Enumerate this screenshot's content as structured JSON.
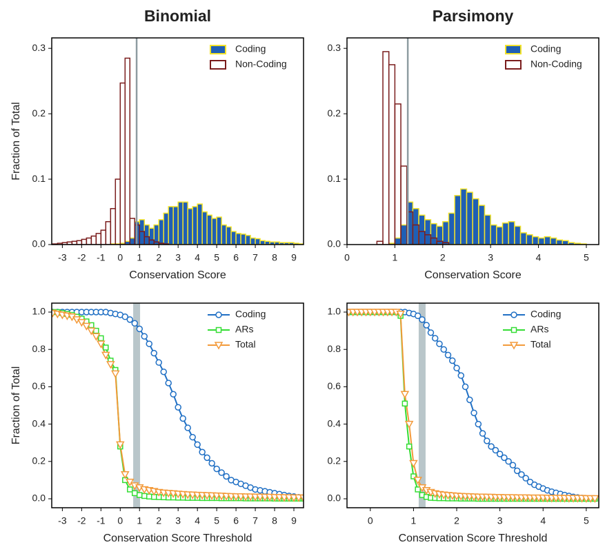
{
  "chart_data": [
    {
      "type": "histogram",
      "title": "Binomial",
      "xlabel": "Conservation Score",
      "ylabel": "Fraction of Total",
      "xlim": [
        -3.55,
        9.5
      ],
      "ylim": [
        0,
        0.316
      ],
      "xticks": [
        -3,
        -2,
        -1,
        0,
        1,
        2,
        3,
        4,
        5,
        6,
        7,
        8,
        9
      ],
      "yticks": [
        {
          "value": 0,
          "label": "0.0"
        },
        0.1,
        0.2,
        0.3
      ],
      "threshold": 0.85,
      "threshold_color": "#8e9ca1",
      "legend": "upper right",
      "bins": [
        -3.5,
        -3.25,
        -3,
        -2.75,
        -2.5,
        -2.25,
        -2,
        -1.75,
        -1.5,
        -1.25,
        -1,
        -0.75,
        -0.5,
        -0.25,
        0,
        0.25,
        0.5,
        0.75,
        1,
        1.25,
        1.5,
        1.75,
        2,
        2.25,
        2.5,
        2.75,
        3,
        3.25,
        3.5,
        3.75,
        4,
        4.25,
        4.5,
        4.75,
        5,
        5.25,
        5.5,
        5.75,
        6,
        6.25,
        6.5,
        6.75,
        7,
        7.25,
        7.5,
        7.75,
        8,
        8.25,
        8.5,
        8.75,
        9,
        9.25,
        9.5
      ],
      "series": [
        {
          "name": "Coding",
          "color": "#1f5fb5",
          "edgecolor": "#f3e32a",
          "filled": true,
          "values": [
            0,
            0,
            0,
            0,
            0,
            0,
            0,
            0,
            0,
            0,
            0,
            0,
            0.001,
            0.001,
            0.002,
            0.005,
            0.01,
            0.035,
            0.038,
            0.03,
            0.025,
            0.03,
            0.038,
            0.048,
            0.058,
            0.058,
            0.065,
            0.065,
            0.055,
            0.058,
            0.062,
            0.05,
            0.045,
            0.04,
            0.042,
            0.03,
            0.027,
            0.02,
            0.017,
            0.016,
            0.014,
            0.01,
            0.009,
            0.006,
            0.005,
            0.004,
            0.004,
            0.003,
            0.003,
            0.003,
            0.002,
            0.001
          ]
        },
        {
          "name": "Non-Coding",
          "color": "#7a1c1c",
          "edgecolor": "#7a1c1c",
          "filled": false,
          "values": [
            0.001,
            0.002,
            0.003,
            0.004,
            0.005,
            0.006,
            0.008,
            0.01,
            0.013,
            0.017,
            0.022,
            0.035,
            0.055,
            0.1,
            0.247,
            0.285,
            0.04,
            0.03,
            0.02,
            0.012,
            0.007,
            0.004,
            0.002,
            0.001,
            0,
            0,
            0,
            0,
            0,
            0,
            0,
            0,
            0,
            0,
            0,
            0,
            0,
            0,
            0,
            0,
            0,
            0,
            0,
            0,
            0,
            0,
            0,
            0,
            0,
            0,
            0,
            0
          ]
        }
      ]
    },
    {
      "type": "histogram",
      "title": "Parsimony",
      "xlabel": "Conservation Score",
      "xlim": [
        0,
        5.26
      ],
      "ylim": [
        0,
        0.316
      ],
      "xticks": [
        0,
        1,
        2,
        3,
        4,
        5
      ],
      "yticks": [
        {
          "value": 0,
          "label": "0.0"
        },
        0.1,
        0.2,
        0.3
      ],
      "threshold": 1.27,
      "threshold_color": "#8e9ca1",
      "legend": "upper right",
      "bins": [
        0,
        0.125,
        0.25,
        0.375,
        0.5,
        0.625,
        0.75,
        0.875,
        1,
        1.125,
        1.25,
        1.375,
        1.5,
        1.625,
        1.75,
        1.875,
        2,
        2.125,
        2.25,
        2.375,
        2.5,
        2.625,
        2.75,
        2.875,
        3,
        3.125,
        3.25,
        3.375,
        3.5,
        3.625,
        3.75,
        3.875,
        4,
        4.125,
        4.25,
        4.375,
        4.5,
        4.625,
        4.75,
        4.875,
        5,
        5.125,
        5.25
      ],
      "series": [
        {
          "name": "Coding",
          "color": "#1f5fb5",
          "edgecolor": "#f3e32a",
          "filled": true,
          "values": [
            0,
            0,
            0,
            0,
            0,
            0,
            0,
            0.002,
            0.01,
            0.03,
            0.065,
            0.055,
            0.045,
            0.038,
            0.032,
            0.028,
            0.035,
            0.048,
            0.075,
            0.085,
            0.08,
            0.07,
            0.06,
            0.045,
            0.03,
            0.027,
            0.033,
            0.035,
            0.028,
            0.018,
            0.015,
            0.012,
            0.01,
            0.012,
            0.01,
            0.007,
            0.006,
            0.003,
            0.002,
            0.001,
            0,
            0
          ]
        },
        {
          "name": "Non-Coding",
          "color": "#7a1c1c",
          "edgecolor": "#7a1c1c",
          "filled": false,
          "values": [
            0,
            0,
            0,
            0,
            0,
            0.005,
            0.295,
            0.275,
            0.215,
            0.12,
            0.05,
            0.03,
            0.02,
            0.015,
            0.01,
            0.005,
            0.003,
            0,
            0,
            0,
            0,
            0,
            0,
            0,
            0,
            0,
            0,
            0,
            0,
            0,
            0,
            0,
            0,
            0,
            0,
            0,
            0,
            0,
            0,
            0,
            0,
            0
          ]
        }
      ]
    },
    {
      "type": "line",
      "xlabel": "Conservation Score Threshold",
      "ylabel": "Fraction of Total",
      "xlim": [
        -3.55,
        9.5
      ],
      "ylim": [
        -0.048,
        1.048
      ],
      "xticks": [
        -3,
        -2,
        -1,
        0,
        1,
        2,
        3,
        4,
        5,
        6,
        7,
        8,
        9
      ],
      "yticks": [
        {
          "value": 0,
          "label": "0.0"
        },
        0.2,
        0.4,
        0.6,
        0.8,
        {
          "value": 1,
          "label": "1.0"
        }
      ],
      "threshold": 0.85,
      "threshold_color": "#b9c6ca",
      "legend": "upper right",
      "x": [
        -3.5,
        -3.25,
        -3,
        -2.75,
        -2.5,
        -2.25,
        -2,
        -1.75,
        -1.5,
        -1.25,
        -1,
        -0.75,
        -0.5,
        -0.25,
        0,
        0.25,
        0.5,
        0.75,
        1,
        1.25,
        1.5,
        1.75,
        2,
        2.25,
        2.5,
        2.75,
        3,
        3.25,
        3.5,
        3.75,
        4,
        4.25,
        4.5,
        4.75,
        5,
        5.25,
        5.5,
        5.75,
        6,
        6.25,
        6.5,
        6.75,
        7,
        7.25,
        7.5,
        7.75,
        8,
        8.25,
        8.5,
        8.75,
        9,
        9.25,
        9.5
      ],
      "series": [
        {
          "name": "Coding",
          "color": "#1f6fc4",
          "marker": "circle",
          "values": [
            1,
            1,
            1,
            1,
            1,
            1,
            1,
            1,
            1,
            1,
            1,
            1,
            0.995,
            0.99,
            0.985,
            0.975,
            0.96,
            0.94,
            0.91,
            0.87,
            0.83,
            0.78,
            0.73,
            0.68,
            0.62,
            0.56,
            0.49,
            0.43,
            0.38,
            0.33,
            0.29,
            0.25,
            0.22,
            0.19,
            0.16,
            0.14,
            0.12,
            0.1,
            0.09,
            0.08,
            0.07,
            0.06,
            0.05,
            0.045,
            0.04,
            0.035,
            0.03,
            0.025,
            0.02,
            0.015,
            0.012,
            0.008,
            0.005
          ]
        },
        {
          "name": "ARs",
          "color": "#33dd33",
          "marker": "square",
          "values": [
            1,
            1,
            0.995,
            0.99,
            0.985,
            0.975,
            0.965,
            0.95,
            0.93,
            0.9,
            0.86,
            0.81,
            0.74,
            0.69,
            0.28,
            0.1,
            0.05,
            0.03,
            0.02,
            0.015,
            0.012,
            0.01,
            0.009,
            0.008,
            0.007,
            0.007,
            0.006,
            0.006,
            0.005,
            0.005,
            0.005,
            0.004,
            0.004,
            0.004,
            0.004,
            0.003,
            0.003,
            0.003,
            0.003,
            0.003,
            0.002,
            0.002,
            0.002,
            0.002,
            0.002,
            0.002,
            0.001,
            0.001,
            0.001,
            0.001,
            0.001,
            0.001,
            0.001
          ]
        },
        {
          "name": "Total",
          "color": "#f39a3a",
          "marker": "triangle-down",
          "values": [
            0.995,
            0.99,
            0.985,
            0.98,
            0.975,
            0.96,
            0.945,
            0.925,
            0.9,
            0.87,
            0.83,
            0.77,
            0.72,
            0.67,
            0.29,
            0.13,
            0.09,
            0.07,
            0.06,
            0.05,
            0.045,
            0.04,
            0.035,
            0.032,
            0.03,
            0.028,
            0.026,
            0.024,
            0.022,
            0.021,
            0.02,
            0.019,
            0.018,
            0.017,
            0.016,
            0.015,
            0.014,
            0.013,
            0.012,
            0.012,
            0.011,
            0.011,
            0.01,
            0.01,
            0.009,
            0.009,
            0.008,
            0.008,
            0.007,
            0.007,
            0.006,
            0.006,
            0.005
          ]
        }
      ]
    },
    {
      "type": "line",
      "xlabel": "Conservation Score Threshold",
      "xlim": [
        -0.54,
        5.29
      ],
      "ylim": [
        -0.048,
        1.048
      ],
      "xticks": [
        0,
        1,
        2,
        3,
        4,
        5
      ],
      "yticks": [
        {
          "value": 0,
          "label": "0.0"
        },
        0.2,
        0.4,
        0.6,
        0.8,
        {
          "value": 1,
          "label": "1.0"
        }
      ],
      "threshold": 1.2,
      "threshold_color": "#b9c6ca",
      "legend": "upper right",
      "x": [
        -0.5,
        -0.4,
        -0.3,
        -0.2,
        -0.1,
        0,
        0.1,
        0.2,
        0.3,
        0.4,
        0.5,
        0.6,
        0.7,
        0.8,
        0.9,
        1,
        1.1,
        1.2,
        1.3,
        1.4,
        1.5,
        1.6,
        1.7,
        1.8,
        1.9,
        2,
        2.1,
        2.2,
        2.3,
        2.4,
        2.5,
        2.6,
        2.7,
        2.8,
        2.9,
        3,
        3.1,
        3.2,
        3.3,
        3.4,
        3.5,
        3.6,
        3.7,
        3.8,
        3.9,
        4,
        4.1,
        4.2,
        4.3,
        4.4,
        4.5,
        4.6,
        4.7,
        4.8,
        4.9,
        5,
        5.1,
        5.2
      ],
      "series": [
        {
          "name": "Coding",
          "color": "#1f6fc4",
          "marker": "circle",
          "values": [
            1,
            1,
            1,
            1,
            1,
            1,
            1,
            1,
            1,
            1,
            1,
            1,
            1,
            1,
            0.995,
            0.99,
            0.98,
            0.96,
            0.93,
            0.89,
            0.86,
            0.83,
            0.8,
            0.77,
            0.74,
            0.7,
            0.66,
            0.6,
            0.53,
            0.46,
            0.4,
            0.35,
            0.31,
            0.28,
            0.26,
            0.24,
            0.22,
            0.2,
            0.18,
            0.15,
            0.13,
            0.11,
            0.09,
            0.075,
            0.065,
            0.055,
            0.045,
            0.038,
            0.032,
            0.026,
            0.02,
            0.015,
            0.01,
            0.007,
            0.004,
            0.002,
            null,
            null
          ]
        },
        {
          "name": "ARs",
          "color": "#33dd33",
          "marker": "square",
          "values": [
            1,
            1,
            1,
            1,
            1,
            1,
            1,
            1,
            1,
            1,
            1,
            1,
            0.98,
            0.51,
            0.28,
            0.12,
            0.05,
            0.02,
            0.01,
            0.005,
            0.004,
            0.003,
            0.003,
            0.002,
            0.002,
            0.002,
            0.001,
            0.001,
            0.001,
            0.001,
            0,
            0,
            0,
            0,
            0,
            0,
            0,
            0,
            0,
            0,
            0,
            0,
            0,
            0,
            0,
            0,
            0,
            0,
            0,
            0,
            0,
            0,
            0,
            0,
            0,
            0,
            0,
            0
          ]
        },
        {
          "name": "Total",
          "color": "#f39a3a",
          "marker": "triangle-down",
          "values": [
            1,
            1,
            1,
            1,
            1,
            1,
            1,
            1,
            1,
            1,
            1,
            1,
            0.99,
            0.56,
            0.4,
            0.19,
            0.1,
            0.06,
            0.045,
            0.035,
            0.028,
            0.024,
            0.021,
            0.019,
            0.017,
            0.015,
            0.014,
            0.013,
            0.012,
            0.011,
            0.01,
            0.01,
            0.009,
            0.009,
            0.008,
            0.008,
            0.007,
            0.007,
            0.007,
            0.006,
            0.006,
            0.006,
            0.005,
            0.005,
            0.005,
            0.005,
            0.004,
            0.004,
            0.004,
            0.004,
            0.003,
            0.003,
            0.003,
            0.003,
            0.003,
            0.002,
            0.002,
            0.002
          ]
        }
      ]
    }
  ]
}
